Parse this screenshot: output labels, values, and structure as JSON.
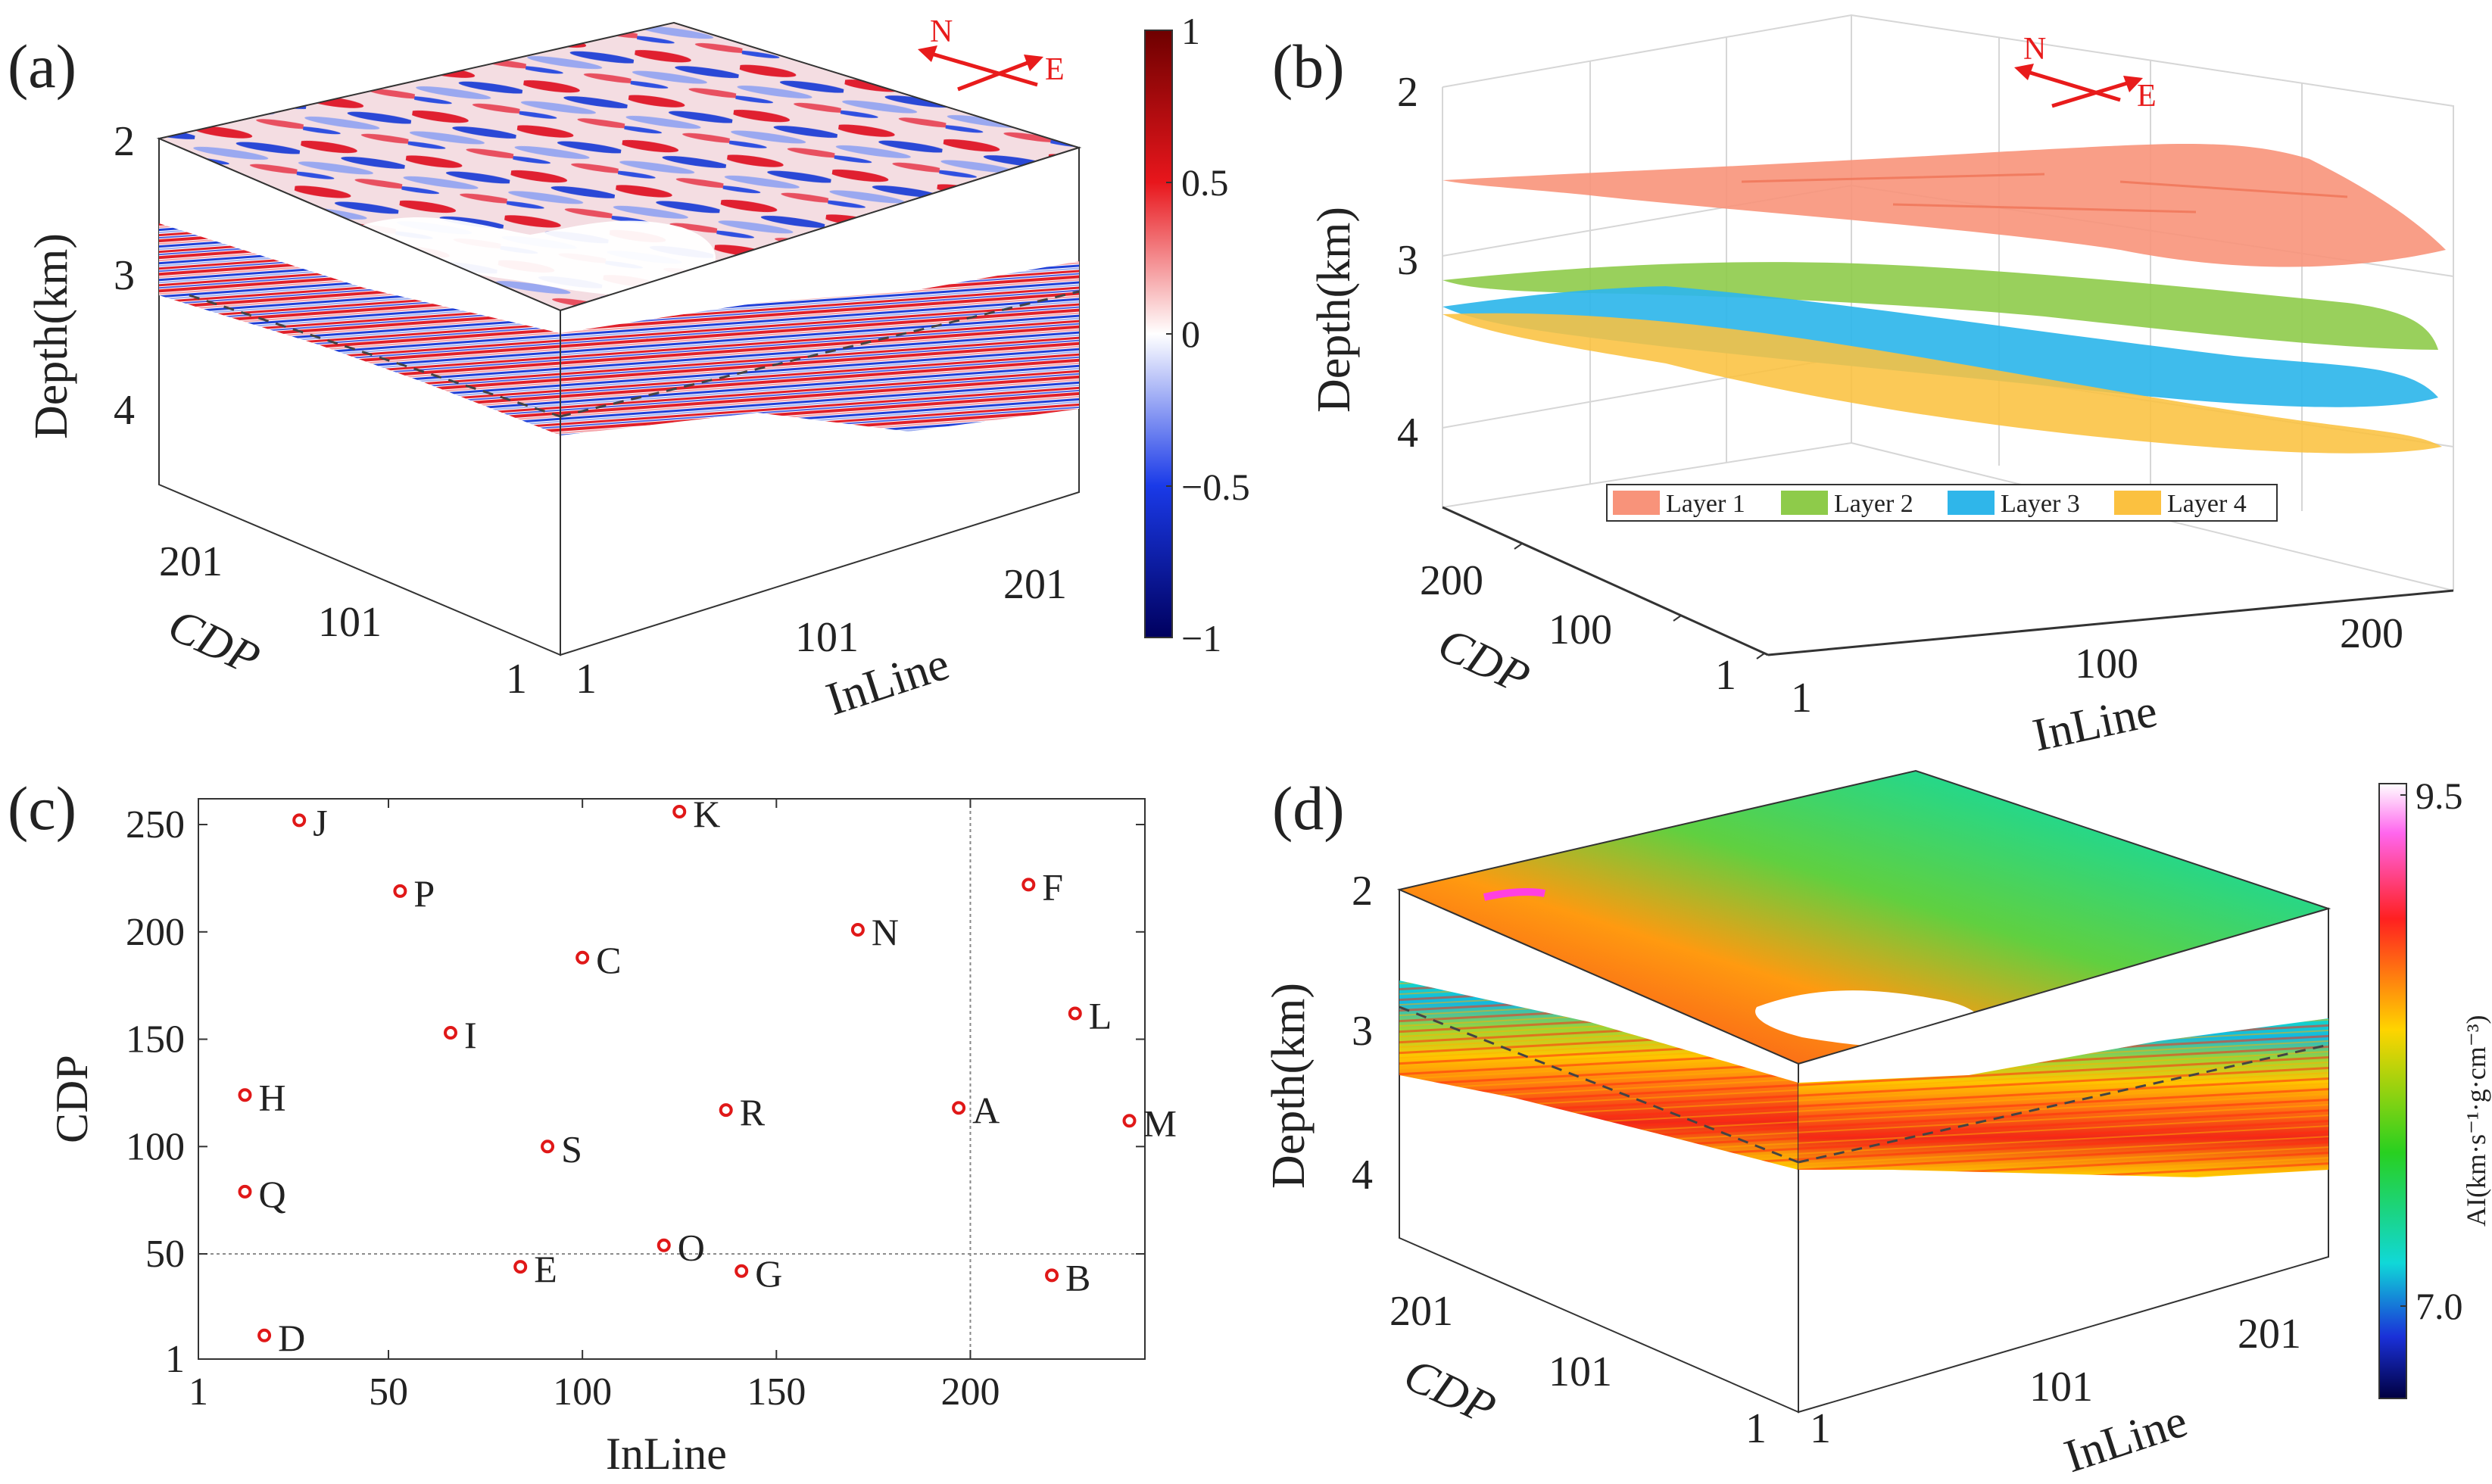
{
  "colors": {
    "seis_pos": "#e0202a",
    "seis_neg": "#2040d8",
    "layer1": "#f8937a",
    "layer2": "#8ecb4a",
    "layer3": "#2fb6ea",
    "layer4": "#fbc140",
    "marker": "#e01818",
    "compass": "#e81b1b",
    "ai_high": "#e82020",
    "ai_mid": "#ffd400",
    "ai_low": "#12d6d6"
  },
  "panels": {
    "a": {
      "tag": "(a)",
      "depth_label": "Depth(km)",
      "cdp_label": "CDP",
      "inline_label": "InLine",
      "depth_ticks": [
        "2",
        "3",
        "4"
      ],
      "cdp_ticks": [
        "1",
        "101",
        "201"
      ],
      "inline_ticks": [
        "1",
        "101",
        "201"
      ],
      "compass": {
        "n": "N",
        "e": "E"
      },
      "colorbar": {
        "ticks": [
          "1",
          "0.5",
          "0",
          "−0.5",
          "−1"
        ],
        "range": [
          -1,
          1
        ]
      }
    },
    "b": {
      "tag": "(b)",
      "depth_label": "Depth(km)",
      "cdp_label": "CDP",
      "inline_label": "InLine",
      "depth_ticks": [
        "2",
        "3",
        "4"
      ],
      "cdp_ticks": [
        "1",
        "100",
        "200"
      ],
      "inline_ticks": [
        "1",
        "100",
        "200"
      ],
      "compass": {
        "n": "N",
        "e": "E"
      },
      "legend": [
        "Layer 1",
        "Layer 2",
        "Layer 3",
        "Layer 4"
      ]
    },
    "c": {
      "tag": "(c)",
      "xlabel": "InLine",
      "ylabel": "CDP"
    },
    "d": {
      "tag": "(d)",
      "depth_label": "Depth(km)",
      "cdp_label": "CDP",
      "inline_label": "InLine",
      "depth_ticks": [
        "2",
        "3",
        "4"
      ],
      "cdp_ticks": [
        "1",
        "101",
        "201"
      ],
      "inline_ticks": [
        "1",
        "101",
        "201"
      ],
      "colorbar": {
        "ticks": [
          "9.5",
          "7.0"
        ],
        "label": "AI(km·s⁻¹·g·cm⁻³)"
      }
    }
  },
  "chart_data": {
    "type": "scatter",
    "title": "",
    "xlabel": "InLine",
    "ylabel": "CDP",
    "xlim": [
      1,
      245
    ],
    "ylim": [
      1,
      262
    ],
    "xticks": [
      1,
      50,
      100,
      150,
      200
    ],
    "yticks": [
      1,
      50,
      100,
      150,
      200,
      250
    ],
    "ref_lines": {
      "x": 200,
      "y": 50
    },
    "points": [
      {
        "label": "A",
        "x": 197,
        "y": 118
      },
      {
        "label": "B",
        "x": 221,
        "y": 40
      },
      {
        "label": "C",
        "x": 100,
        "y": 188
      },
      {
        "label": "D",
        "x": 18,
        "y": 12
      },
      {
        "label": "E",
        "x": 84,
        "y": 44
      },
      {
        "label": "F",
        "x": 215,
        "y": 222
      },
      {
        "label": "G",
        "x": 141,
        "y": 42
      },
      {
        "label": "H",
        "x": 13,
        "y": 124
      },
      {
        "label": "I",
        "x": 66,
        "y": 153
      },
      {
        "label": "J",
        "x": 27,
        "y": 252
      },
      {
        "label": "K",
        "x": 125,
        "y": 256
      },
      {
        "label": "L",
        "x": 227,
        "y": 162
      },
      {
        "label": "M",
        "x": 241,
        "y": 112
      },
      {
        "label": "N",
        "x": 171,
        "y": 201
      },
      {
        "label": "O",
        "x": 121,
        "y": 54
      },
      {
        "label": "P",
        "x": 53,
        "y": 219
      },
      {
        "label": "Q",
        "x": 13,
        "y": 79
      },
      {
        "label": "R",
        "x": 137,
        "y": 117
      },
      {
        "label": "S",
        "x": 91,
        "y": 100
      }
    ]
  }
}
